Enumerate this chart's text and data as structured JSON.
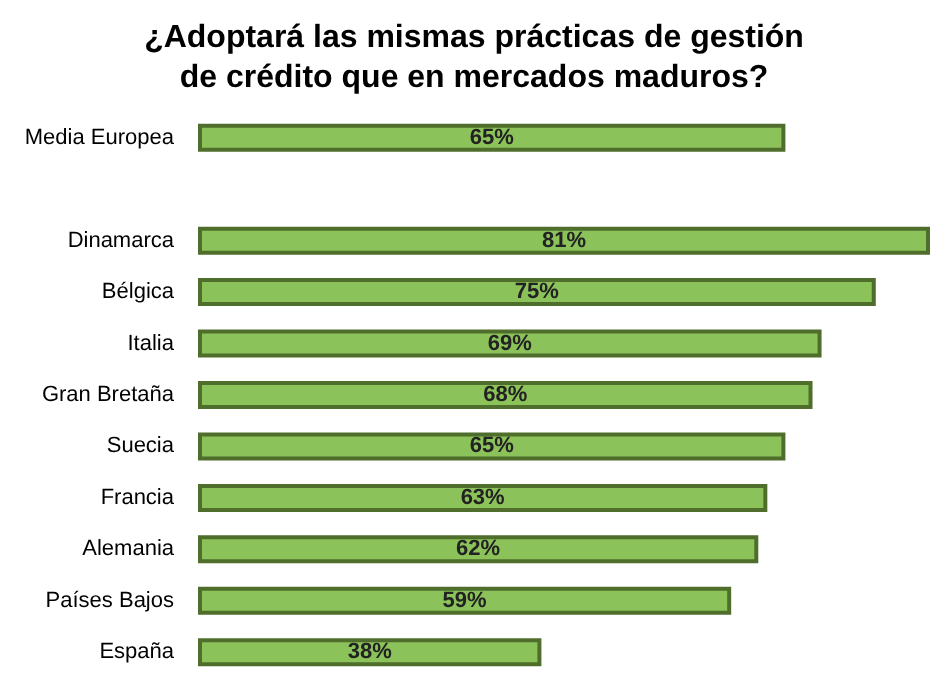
{
  "chart_data": {
    "type": "bar",
    "orientation": "horizontal",
    "title": "¿Adoptará las mismas prácticas de gestión\nde crédito que en mercados maduros?",
    "categories": [
      "Media Europea",
      null,
      "Dinamarca",
      "Bélgica",
      "Italia",
      "Gran Bretaña",
      "Suecia",
      "Francia",
      "Alemania",
      "Países Bajos",
      "España"
    ],
    "values": [
      65,
      null,
      81,
      75,
      69,
      68,
      65,
      63,
      62,
      59,
      38
    ],
    "value_labels": [
      "65%",
      null,
      "81%",
      "75%",
      "69%",
      "68%",
      "65%",
      "63%",
      "62%",
      "59%",
      "38%"
    ],
    "color": "#8cc25a"
  }
}
